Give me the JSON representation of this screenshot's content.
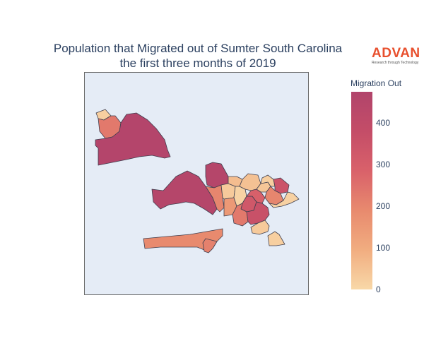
{
  "title": {
    "line1": "Population that Migrated out of Sumter South Carolina",
    "line2": "the first three months of 2019"
  },
  "logo": {
    "word": "ADVAN",
    "tagline": "Research through Technology",
    "color": "#e8502e"
  },
  "colorbar": {
    "title": "Migration Out",
    "range": [
      0,
      475
    ],
    "ticks": [
      "0",
      "100",
      "200",
      "300",
      "400"
    ],
    "tick_values": [
      0,
      100,
      200,
      300,
      400
    ],
    "colorscale": [
      "#f8d8a8",
      "#f1ad80",
      "#e88a6e",
      "#d9616a",
      "#c44d68",
      "#b1446b"
    ]
  },
  "map": {
    "background": "#e5ecf6",
    "border": "#6b6b6b",
    "region_stroke": "#3f3f4f",
    "regions": [
      {
        "id": "nw-small",
        "value": 20
      },
      {
        "id": "nw-mid",
        "value": 230
      },
      {
        "id": "nw-large",
        "value": 460
      },
      {
        "id": "center-large",
        "value": 455
      },
      {
        "id": "center-top",
        "value": 455
      },
      {
        "id": "c-a",
        "value": 200
      },
      {
        "id": "c-b",
        "value": 30
      },
      {
        "id": "c-c",
        "value": 150
      },
      {
        "id": "c-d",
        "value": 60
      },
      {
        "id": "c-e",
        "value": 10
      },
      {
        "id": "c-f",
        "value": 330
      },
      {
        "id": "c-g",
        "value": 50
      },
      {
        "id": "c-h",
        "value": 290
      },
      {
        "id": "c-i",
        "value": 40
      },
      {
        "id": "c-j",
        "value": 20
      },
      {
        "id": "c-k",
        "value": 350
      },
      {
        "id": "c-l",
        "value": 230
      },
      {
        "id": "c-m",
        "value": 360
      },
      {
        "id": "c-n",
        "value": 200
      },
      {
        "id": "e-a",
        "value": 15
      },
      {
        "id": "e-b",
        "value": 30
      },
      {
        "id": "e-c",
        "value": 20
      },
      {
        "id": "s-long",
        "value": 190
      },
      {
        "id": "s-small",
        "value": 210
      }
    ]
  }
}
